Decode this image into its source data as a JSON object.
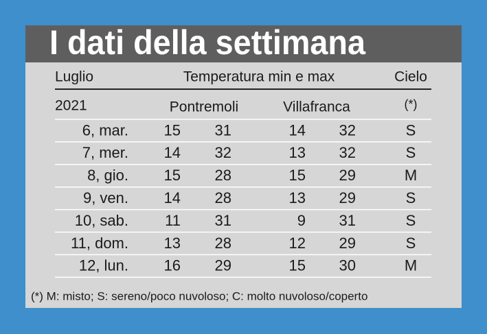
{
  "header": {
    "title": "I dati della settimana"
  },
  "table": {
    "columns": {
      "month": "Luglio",
      "temperature": "Temperatura min e max",
      "sky": "Cielo"
    },
    "subheader": {
      "year": "2021",
      "city1": "Pontremoli",
      "city2": "Villafranca",
      "sky_note": "(*)"
    },
    "rows": [
      [
        "6, mar.",
        15,
        31,
        14,
        32,
        "S"
      ],
      [
        "7, mer.",
        14,
        32,
        13,
        32,
        "S"
      ],
      [
        "8, gio.",
        15,
        28,
        15,
        29,
        "M"
      ],
      [
        "9, ven.",
        14,
        28,
        13,
        29,
        "S"
      ],
      [
        "10, sab.",
        11,
        31,
        9,
        31,
        "S"
      ],
      [
        "11, dom.",
        13,
        28,
        12,
        29,
        "S"
      ],
      [
        "12, lun.",
        16,
        29,
        15,
        30,
        "M"
      ]
    ]
  },
  "footnote": "(*) M: misto; S: sereno/poco nuvoloso; C: molto nuvoloso/coperto"
}
